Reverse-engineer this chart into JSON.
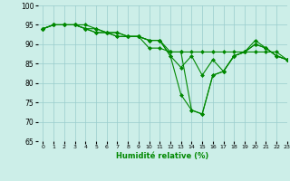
{
  "xlabel": "Humidité relative (%)",
  "xlim": [
    -0.5,
    23
  ],
  "ylim": [
    65,
    100
  ],
  "yticks": [
    65,
    70,
    75,
    80,
    85,
    90,
    95,
    100
  ],
  "xticks": [
    0,
    1,
    2,
    3,
    4,
    5,
    6,
    7,
    8,
    9,
    10,
    11,
    12,
    13,
    14,
    15,
    16,
    17,
    18,
    19,
    20,
    21,
    22,
    23
  ],
  "bg_color": "#cceee8",
  "grid_color": "#99cccc",
  "line_color": "#008800",
  "series": [
    [
      94,
      95,
      95,
      95,
      95,
      94,
      93,
      93,
      92,
      92,
      91,
      91,
      87,
      84,
      87,
      82,
      86,
      83,
      87,
      88,
      91,
      89,
      87,
      86
    ],
    [
      94,
      95,
      95,
      95,
      94,
      94,
      93,
      93,
      92,
      92,
      91,
      91,
      88,
      88,
      88,
      88,
      88,
      88,
      88,
      88,
      88,
      88,
      88,
      86
    ],
    [
      94,
      95,
      95,
      95,
      94,
      93,
      93,
      92,
      92,
      92,
      91,
      91,
      87,
      77,
      73,
      72,
      82,
      83,
      87,
      88,
      90,
      89,
      87,
      86
    ],
    [
      94,
      95,
      95,
      95,
      94,
      93,
      93,
      92,
      92,
      92,
      89,
      89,
      88,
      88,
      73,
      72,
      82,
      83,
      87,
      88,
      90,
      89,
      87,
      86
    ]
  ]
}
